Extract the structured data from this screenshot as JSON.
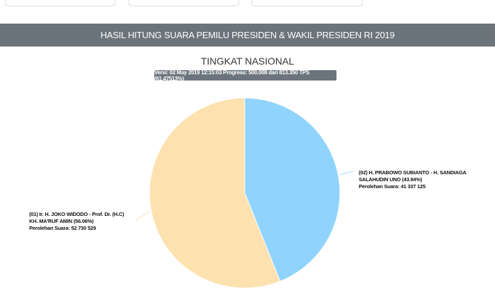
{
  "header": {
    "title": "HASIL HITUNG SUARA PEMILU PRESIDEN & WAKIL PRESIDEN RI 2019"
  },
  "chart_data": {
    "type": "pie",
    "title": "TINGKAT NASIONAL",
    "subtitle": "Versi: 02 May 2019 12:15:03 Progress: 500.008 dari 813.350 TPS (61.47513%)",
    "slices": [
      {
        "line1": "(02) H. PRABOWO SUBIANTO - H. SANDIAGA",
        "line2": "SALAHUDIN UNO (43.94%)",
        "votes_label": "Perolehan Suara: 41 337 125",
        "percent": 43.94,
        "votes": 41337125,
        "color": "#90d4fd"
      },
      {
        "line1": "(01) Ir. H. JOKO WIDODO - Prof. Dr. (H.C)",
        "line2": "KH. MA'RUF AMIN (56.06%)",
        "votes_label": "Perolehan Suara: 52 730 529",
        "percent": 56.06,
        "votes": 52730529,
        "color": "#fde2b0"
      }
    ]
  }
}
